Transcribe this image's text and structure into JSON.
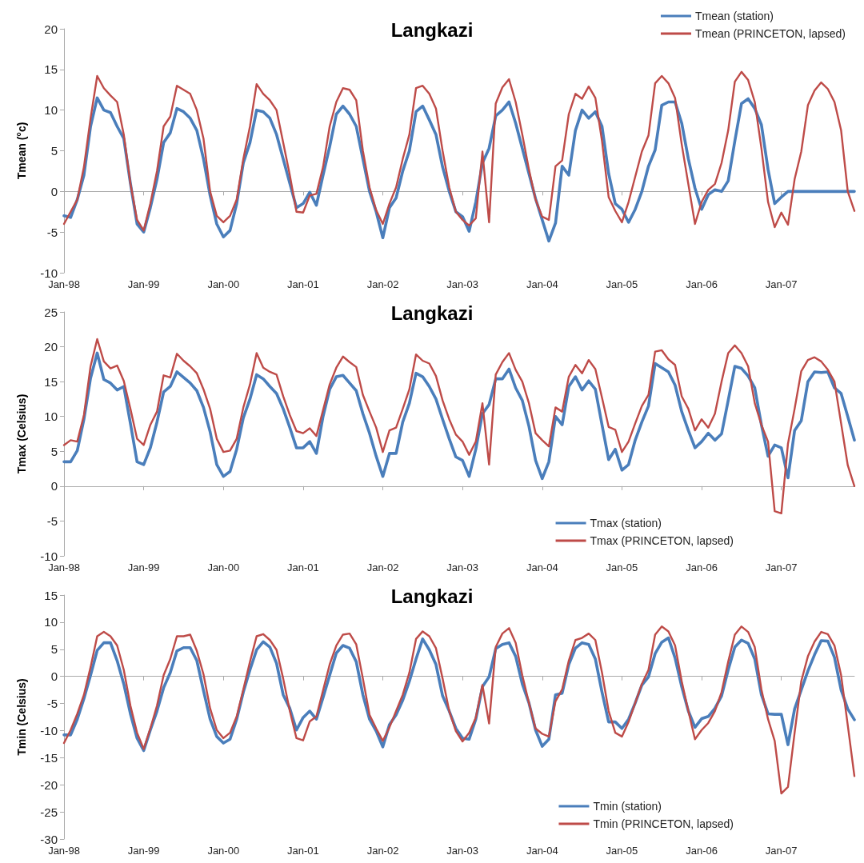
{
  "chart_data": [
    {
      "type": "line",
      "title": "Langkazi",
      "ylabel": "Tmean (°c)",
      "legend": "top right",
      "marker": "none",
      "line_style": "solid",
      "categories": [
        "Jan-98",
        null,
        null,
        null,
        null,
        null,
        null,
        null,
        null,
        null,
        null,
        null,
        "Jan-99",
        null,
        null,
        null,
        null,
        null,
        null,
        null,
        null,
        null,
        null,
        null,
        "Jan-00",
        null,
        null,
        null,
        null,
        null,
        null,
        null,
        null,
        null,
        null,
        null,
        "Jan-01",
        null,
        null,
        null,
        null,
        null,
        null,
        null,
        null,
        null,
        null,
        null,
        "Jan-02",
        null,
        null,
        null,
        null,
        null,
        null,
        null,
        null,
        null,
        null,
        null,
        "Jan-03",
        null,
        null,
        null,
        null,
        null,
        null,
        null,
        null,
        null,
        null,
        null,
        "Jan-04",
        null,
        null,
        null,
        null,
        null,
        null,
        null,
        null,
        null,
        null,
        null,
        "Jan-05",
        null,
        null,
        null,
        null,
        null,
        null,
        null,
        null,
        null,
        null,
        null,
        "Jan-06",
        null,
        null,
        null,
        null,
        null,
        null,
        null,
        null,
        null,
        null,
        null,
        "Jan-07",
        null,
        null,
        null,
        null,
        null,
        null,
        null,
        null,
        null,
        null,
        null
      ],
      "ylim": [
        -10,
        20
      ],
      "yticks": [
        -10,
        -5,
        0,
        5,
        10,
        15,
        20
      ],
      "series": [
        {
          "name": "Tmean (station)",
          "color": "#4a7ebb",
          "values": [
            -3,
            -3.2,
            -1,
            2,
            8,
            11.5,
            10,
            9.7,
            8,
            6.5,
            1,
            -4,
            -5,
            -2,
            1.5,
            6,
            7.2,
            10.2,
            9.8,
            9,
            7.5,
            4,
            -0.5,
            -4,
            -5.6,
            -4.8,
            -1.5,
            3.5,
            6,
            10,
            9.8,
            9,
            7,
            4,
            1,
            -2,
            -1.5,
            -0.1,
            -1.7,
            2,
            5.5,
            9.5,
            10.5,
            9.5,
            8,
            4,
            0,
            -2.5,
            -5.7,
            -2,
            -0.8,
            2.5,
            5,
            9.8,
            10.5,
            8.8,
            7,
            3,
            0,
            -2.5,
            -3.1,
            -4.9,
            -1.3,
            3.5,
            5.3,
            9.3,
            10,
            11,
            8.4,
            5.3,
            2.2,
            -0.9,
            -3.5,
            -6.1,
            -3.9,
            3.1,
            2,
            7.5,
            10,
            9,
            9.8,
            8,
            2.2,
            -1.5,
            -2.2,
            -3.8,
            -2.2,
            0,
            3.1,
            5.1,
            10.6,
            11,
            11,
            8.4,
            4,
            0.4,
            -2.2,
            -0.4,
            0.2,
            0,
            1.3,
            6.2,
            10.8,
            11.4,
            10.2,
            8.2,
            2.7,
            -1.5,
            -0.7,
            0,
            0,
            0,
            0,
            0,
            0,
            0,
            0,
            0,
            0,
            0
          ]
        },
        {
          "name": "Tmean (PRINCETON, lapsed)",
          "color": "#be4b48",
          "values": [
            -4,
            -2.5,
            -1,
            3,
            9,
            14.2,
            12.7,
            11.8,
            11,
            7,
            1,
            -3.5,
            -4.8,
            -1.5,
            2.5,
            8,
            9.2,
            13,
            12.5,
            12,
            10,
            6.5,
            0,
            -3,
            -3.8,
            -3,
            -1,
            4,
            8,
            13.2,
            12,
            11.2,
            10,
            6,
            2,
            -2.5,
            -2.6,
            -0.5,
            -0.3,
            3,
            8,
            11,
            12.7,
            12.5,
            11.2,
            5,
            0.5,
            -2.3,
            -4,
            -1.5,
            0.5,
            4,
            7,
            12.7,
            13,
            12,
            10.2,
            5,
            0.5,
            -2.5,
            -3.5,
            -4.2,
            -3.3,
            4.9,
            -3.8,
            10.8,
            12.8,
            13.8,
            11,
            7,
            2.7,
            -1,
            -3.1,
            -3.5,
            3.1,
            3.8,
            9.5,
            12,
            11.4,
            12.9,
            11.5,
            6.2,
            -0.7,
            -2.4,
            -3.8,
            -1.3,
            1.8,
            4.9,
            6.9,
            13.3,
            14.2,
            13.3,
            11.5,
            5.8,
            0.9,
            -4,
            -1.3,
            0.2,
            0.9,
            3.5,
            7.5,
            13.5,
            14.7,
            13.7,
            11,
            5.3,
            -1.3,
            -4.4,
            -2.6,
            -4.1,
            1.5,
            4.9,
            10.6,
            12.4,
            13.4,
            12.6,
            11,
            7.5,
            0,
            -2.4
          ]
        }
      ]
    },
    {
      "type": "line",
      "title": "Langkazi",
      "ylabel": "Tmax (Celsius)",
      "legend": "bottom right",
      "marker": "none",
      "line_style": "solid",
      "categories": [
        "Jan-98",
        null,
        null,
        null,
        null,
        null,
        null,
        null,
        null,
        null,
        null,
        null,
        "Jan-99",
        null,
        null,
        null,
        null,
        null,
        null,
        null,
        null,
        null,
        null,
        null,
        "Jan-00",
        null,
        null,
        null,
        null,
        null,
        null,
        null,
        null,
        null,
        null,
        null,
        "Jan-01",
        null,
        null,
        null,
        null,
        null,
        null,
        null,
        null,
        null,
        null,
        null,
        "Jan-02",
        null,
        null,
        null,
        null,
        null,
        null,
        null,
        null,
        null,
        null,
        null,
        "Jan-03",
        null,
        null,
        null,
        null,
        null,
        null,
        null,
        null,
        null,
        null,
        null,
        "Jan-04",
        null,
        null,
        null,
        null,
        null,
        null,
        null,
        null,
        null,
        null,
        null,
        "Jan-05",
        null,
        null,
        null,
        null,
        null,
        null,
        null,
        null,
        null,
        null,
        null,
        "Jan-06",
        null,
        null,
        null,
        null,
        null,
        null,
        null,
        null,
        null,
        null,
        null,
        "Jan-07",
        null,
        null,
        null,
        null,
        null,
        null,
        null,
        null,
        null,
        null,
        null
      ],
      "ylim": [
        -10,
        25
      ],
      "yticks": [
        -10,
        -5,
        0,
        5,
        10,
        15,
        20,
        25
      ],
      "series": [
        {
          "name": "Tmax (station)",
          "color": "#4a7ebb",
          "values": [
            3.5,
            3.5,
            5.1,
            9.6,
            15.5,
            19.1,
            15.3,
            14.8,
            13.8,
            14.3,
            9,
            3.5,
            3.1,
            5.5,
            9.2,
            13.5,
            14.3,
            16.4,
            15.6,
            14.8,
            13.7,
            11.3,
            7.8,
            3.1,
            1.4,
            2.1,
            5.3,
            9.8,
            12.5,
            16,
            15.4,
            14.3,
            13.3,
            11.1,
            8.4,
            5.5,
            5.5,
            6.4,
            4.7,
            10,
            13.9,
            15.7,
            15.9,
            14.8,
            13.7,
            10.4,
            7.6,
            4.3,
            1.4,
            4.7,
            4.7,
            9.2,
            11.9,
            16.2,
            15.7,
            14.3,
            12.5,
            9.6,
            6.8,
            4.2,
            3.7,
            1.4,
            5.3,
            10.4,
            11.7,
            15.4,
            15.4,
            16.8,
            14.1,
            12.3,
            8.6,
            3.7,
            1.1,
            3.5,
            10,
            8.8,
            14.3,
            15.7,
            13.8,
            15.1,
            13.9,
            8.8,
            3.8,
            5.3,
            2.3,
            3.1,
            6.6,
            9.2,
            11.5,
            17.6,
            17,
            16.4,
            14.5,
            10.7,
            8,
            5.5,
            6.4,
            7.6,
            6.6,
            7.5,
            12.3,
            17.2,
            16.9,
            15.8,
            14.1,
            8.8,
            4.3,
            5.9,
            5.5,
            1.2,
            8,
            9.4,
            15,
            16.4,
            16.3,
            16.4,
            14.1,
            13.3,
            10,
            6.6
          ]
        },
        {
          "name": "Tmax (PRINCETON, lapsed)",
          "color": "#be4b48",
          "values": [
            5.9,
            6.6,
            6.4,
            10.2,
            17.2,
            21.1,
            17.9,
            16.9,
            17.3,
            15.1,
            11.1,
            6.8,
            5.9,
            8.8,
            10.7,
            15.9,
            15.6,
            19,
            18,
            17.2,
            16.2,
            13.9,
            11.1,
            6.8,
            4.9,
            5.1,
            6.8,
            11.3,
            14.6,
            19.1,
            17,
            16.4,
            16,
            12.9,
            10.2,
            7.9,
            7.6,
            8.3,
            7.2,
            10.9,
            14.6,
            17,
            18.6,
            17.8,
            17.1,
            13.1,
            10.7,
            8.4,
            4.9,
            8,
            8.4,
            11.1,
            13.9,
            18.9,
            18,
            17.6,
            15.8,
            12.3,
            9.6,
            7.4,
            6.4,
            4.5,
            6.4,
            11.9,
            3.1,
            16,
            17.8,
            19.1,
            16.7,
            15,
            11.9,
            7.6,
            6.6,
            5.7,
            11.3,
            10.7,
            15.7,
            17.4,
            16.2,
            18.1,
            16.8,
            12.7,
            8.5,
            8.1,
            4.9,
            6.4,
            9,
            11.5,
            13.1,
            19.3,
            19.5,
            18.2,
            17.4,
            12.9,
            11.1,
            8,
            9.6,
            8.4,
            10.4,
            15,
            19.1,
            20.2,
            19.1,
            17.2,
            11.9,
            8.8,
            6.4,
            -3.6,
            -3.9,
            6.1,
            11.1,
            16.5,
            18.1,
            18.5,
            17.9,
            16.7,
            15,
            9,
            3,
            0
          ]
        }
      ]
    },
    {
      "type": "line",
      "title": "Langkazi",
      "ylabel": "Tmin (Celsius)",
      "legend": "bottom right",
      "marker": "none",
      "line_style": "solid",
      "categories": [
        "Jan-98",
        null,
        null,
        null,
        null,
        null,
        null,
        null,
        null,
        null,
        null,
        null,
        "Jan-99",
        null,
        null,
        null,
        null,
        null,
        null,
        null,
        null,
        null,
        null,
        null,
        "Jan-00",
        null,
        null,
        null,
        null,
        null,
        null,
        null,
        null,
        null,
        null,
        null,
        "Jan-01",
        null,
        null,
        null,
        null,
        null,
        null,
        null,
        null,
        null,
        null,
        null,
        "Jan-02",
        null,
        null,
        null,
        null,
        null,
        null,
        null,
        null,
        null,
        null,
        null,
        "Jan-03",
        null,
        null,
        null,
        null,
        null,
        null,
        null,
        null,
        null,
        null,
        null,
        "Jan-04",
        null,
        null,
        null,
        null,
        null,
        null,
        null,
        null,
        null,
        null,
        null,
        "Jan-05",
        null,
        null,
        null,
        null,
        null,
        null,
        null,
        null,
        null,
        null,
        null,
        "Jan-06",
        null,
        null,
        null,
        null,
        null,
        null,
        null,
        null,
        null,
        null,
        null,
        "Jan-07",
        null,
        null,
        null,
        null,
        null,
        null,
        null,
        null,
        null,
        null,
        null
      ],
      "ylim": [
        -30,
        15
      ],
      "yticks": [
        -30,
        -25,
        -20,
        -15,
        -10,
        -5,
        0,
        5,
        10,
        15
      ],
      "series": [
        {
          "name": "Tmin (station)",
          "color": "#4a7ebb",
          "values": [
            -10.8,
            -10.8,
            -7.9,
            -4.1,
            0.2,
            4.8,
            6.2,
            6.2,
            2.9,
            -1.4,
            -6.9,
            -11.4,
            -13.7,
            -9.9,
            -6.4,
            -2.1,
            0.7,
            4.7,
            5.3,
            5.3,
            2.9,
            -2.6,
            -7.9,
            -11.1,
            -12.3,
            -11.6,
            -7.9,
            -2.9,
            1.2,
            4.9,
            6.4,
            5.4,
            2.4,
            -3.4,
            -5.9,
            -9.9,
            -7.6,
            -6.4,
            -7.9,
            -3.9,
            0.2,
            4.3,
            5.7,
            5.2,
            2.7,
            -3.4,
            -7.9,
            -10.1,
            -13,
            -8.9,
            -7.1,
            -4.4,
            -0.9,
            3.2,
            6.9,
            4.9,
            2.2,
            -3.6,
            -6.4,
            -9.6,
            -11.4,
            -11.6,
            -7.9,
            -1.9,
            -0.1,
            5.1,
            5.9,
            6.2,
            3.7,
            -1.4,
            -4.9,
            -9.9,
            -12.9,
            -11.6,
            -3.4,
            -3.1,
            2.2,
            5.2,
            6.2,
            5.9,
            3.2,
            -2.9,
            -8.4,
            -8.4,
            -9.6,
            -7.9,
            -4.9,
            -1.6,
            -0.1,
            4.2,
            6.3,
            7.1,
            3.4,
            -1.9,
            -6.4,
            -9.4,
            -7.8,
            -7.4,
            -5.9,
            -3.6,
            1.2,
            5.4,
            6.7,
            6.1,
            3.2,
            -3.4,
            -6.9,
            -7,
            -7,
            -12.6,
            -6,
            -2.5,
            1,
            4,
            6.6,
            6.5,
            3.5,
            -2.5,
            -6,
            -8
          ]
        },
        {
          "name": "Tmin (PRINCETON, lapsed)",
          "color": "#be4b48",
          "values": [
            -12.3,
            -9.9,
            -6.9,
            -3.4,
            1.7,
            7.4,
            8.2,
            7.4,
            5.7,
            1.2,
            -5.4,
            -10.4,
            -13.4,
            -9.6,
            -5.4,
            0.2,
            3.2,
            7.4,
            7.4,
            7.7,
            4.7,
            0.4,
            -5.9,
            -9.9,
            -11.4,
            -10.4,
            -7.4,
            -2.4,
            2.7,
            7.4,
            7.8,
            6.7,
            4.9,
            -0.4,
            -6.4,
            -11.4,
            -11.8,
            -8.3,
            -7.4,
            -2.6,
            2.2,
            5.7,
            7.7,
            7.9,
            5.9,
            -0.4,
            -7.1,
            -9.6,
            -11.9,
            -9.4,
            -6.4,
            -3.4,
            0.7,
            6.9,
            8.3,
            7.4,
            5.2,
            -0.4,
            -6.4,
            -10.1,
            -12,
            -10.4,
            -7.6,
            -1.6,
            -8.7,
            5.4,
            7.9,
            8.9,
            6.2,
            0.2,
            -4.9,
            -9.6,
            -10.6,
            -11.1,
            -4.6,
            -2.4,
            2.9,
            6.7,
            7.1,
            7.9,
            6.7,
            0.7,
            -6.4,
            -10.4,
            -11.1,
            -8.4,
            -4.9,
            -1.4,
            1.2,
            7.7,
            9.2,
            8.3,
            5.7,
            -0.9,
            -6.4,
            -11.6,
            -9.9,
            -8.6,
            -6.4,
            -2.9,
            2.7,
            7.7,
            9.2,
            8.2,
            5.4,
            -2.4,
            -7.9,
            -11.9,
            -21.6,
            -20.4,
            -10.4,
            -0.9,
            3.7,
            6.4,
            8.2,
            7.8,
            5.7,
            0.2,
            -9,
            -18.4
          ]
        }
      ]
    }
  ]
}
